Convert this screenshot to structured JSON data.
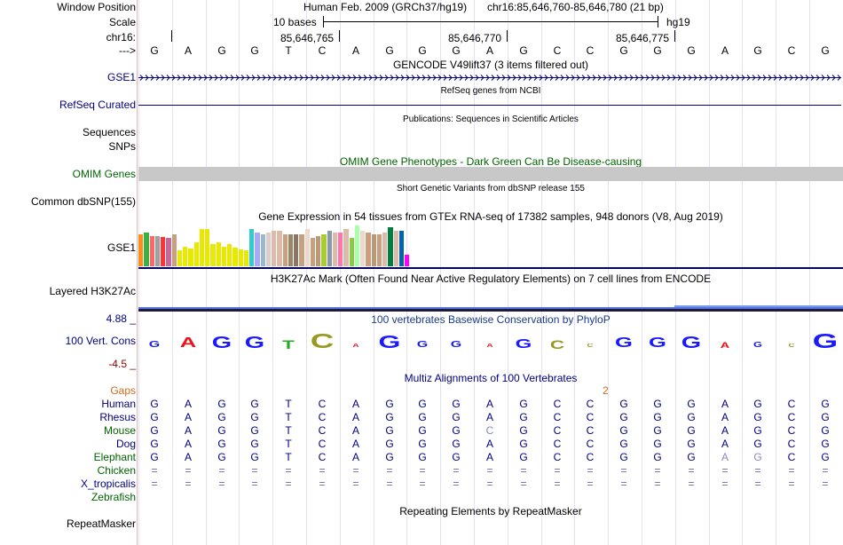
{
  "header": {
    "window_position_label": "Window Position",
    "scale_label": "Scale",
    "chrom_label": "chr16:",
    "arrow_label": "--->",
    "assembly": "Human Feb. 2009 (GRCh37/hg19)",
    "position": "chr16:85,646,760-85,646,780 (21 bp)",
    "scale_text": "10 bases",
    "scale_db": "hg19",
    "coord_ticks": [
      "85,646,765",
      "85,646,770",
      "85,646,775"
    ]
  },
  "sequence": [
    "G",
    "A",
    "G",
    "G",
    "T",
    "C",
    "A",
    "G",
    "G",
    "G",
    "A",
    "G",
    "C",
    "C",
    "G",
    "G",
    "G",
    "A",
    "G",
    "C",
    "G"
  ],
  "tracks": {
    "gencode": {
      "title": "GENCODE V49lift37 (3 items filtered out)",
      "label": "GSE1"
    },
    "refseq": {
      "title": "RefSeq genes from NCBI",
      "label": "RefSeq Curated"
    },
    "publications": {
      "title": "Publications: Sequences in Scientific Articles",
      "label1": "Sequences",
      "label2": "SNPs"
    },
    "omim": {
      "title": "OMIM Gene Phenotypes - Dark Green Can Be Disease-causing",
      "label": "OMIM Genes"
    },
    "dbsnp": {
      "title": "Short Genetic Variants from dbSNP release 155",
      "label": "Common dbSNP(155)"
    },
    "gtex": {
      "title": "Gene Expression in 54 tissues from GTEx RNA-seq of 17382 samples, 948 donors (V8, Aug 2019)",
      "label": "GSE1",
      "bars": [
        {
          "value": 0.86,
          "color": "#ff8c1a"
        },
        {
          "value": 0.9,
          "color": "#3cb043"
        },
        {
          "value": 0.82,
          "color": "#ff6666"
        },
        {
          "value": 0.8,
          "color": "#a0a0a0"
        },
        {
          "value": 0.78,
          "color": "#ff3333"
        },
        {
          "value": 0.75,
          "color": "#cc6699"
        },
        {
          "value": 0.85,
          "color": "#c8a080"
        },
        {
          "value": 0.42,
          "color": "#e8e800"
        },
        {
          "value": 0.52,
          "color": "#e8e800"
        },
        {
          "value": 0.48,
          "color": "#e8e800"
        },
        {
          "value": 0.65,
          "color": "#e8e800"
        },
        {
          "value": 1.0,
          "color": "#e8e800"
        },
        {
          "value": 1.0,
          "color": "#e8e800"
        },
        {
          "value": 0.6,
          "color": "#e8e800"
        },
        {
          "value": 0.65,
          "color": "#e8e800"
        },
        {
          "value": 0.52,
          "color": "#e8e800"
        },
        {
          "value": 0.6,
          "color": "#e8e800"
        },
        {
          "value": 0.5,
          "color": "#e8e800"
        },
        {
          "value": 0.45,
          "color": "#e8e800"
        },
        {
          "value": 0.42,
          "color": "#e8e800"
        },
        {
          "value": 1.0,
          "color": "#33cccc"
        },
        {
          "value": 0.9,
          "color": "#a8a8ff"
        },
        {
          "value": 0.85,
          "color": "#99b8cc"
        },
        {
          "value": 0.9,
          "color": "#ddcccc"
        },
        {
          "value": 0.95,
          "color": "#ddbbaa"
        },
        {
          "value": 0.95,
          "color": "#ddbbaa"
        },
        {
          "value": 0.85,
          "color": "#c8a080"
        },
        {
          "value": 0.85,
          "color": "#998866"
        },
        {
          "value": 0.85,
          "color": "#887766"
        },
        {
          "value": 0.85,
          "color": "#c8a080"
        },
        {
          "value": 1.0,
          "color": "#eed8cc"
        },
        {
          "value": 0.75,
          "color": "#c8a080"
        },
        {
          "value": 0.8,
          "color": "#bb9977"
        },
        {
          "value": 0.85,
          "color": "#aacc33"
        },
        {
          "value": 0.95,
          "color": "#8899aa"
        },
        {
          "value": 0.9,
          "color": "#ddbbaa"
        },
        {
          "value": 0.9,
          "color": "#ff77aa"
        },
        {
          "value": 1.0,
          "color": "#ddbbaa"
        },
        {
          "value": 0.75,
          "color": "#88cc44"
        },
        {
          "value": 1.1,
          "color": "#aaffaa"
        },
        {
          "value": 0.95,
          "color": "#eed8cc"
        },
        {
          "value": 0.9,
          "color": "#c8a080"
        },
        {
          "value": 0.85,
          "color": "#bb9977"
        },
        {
          "value": 0.85,
          "color": "#c8a080"
        },
        {
          "value": 0.9,
          "color": "#ddbbaa"
        },
        {
          "value": 1.05,
          "color": "#007f3f"
        },
        {
          "value": 0.95,
          "color": "#ddbbaa"
        },
        {
          "value": 0.95,
          "color": "#0066aa"
        },
        {
          "value": 0.3,
          "color": "#ff00ff"
        }
      ]
    },
    "h3k27ac": {
      "title": "H3K27Ac Mark (Often Found Near Active Regulatory Elements) on 7 cell lines from ENCODE",
      "label": "Layered H3K27Ac"
    },
    "conservation": {
      "title": "100 vertebrates Basewise Conservation by PhyloP",
      "label": "100 Vert. Cons",
      "max_label": "4.88 _",
      "min_label": "-4.5 _",
      "letters": [
        {
          "b": "G",
          "size": 0.55,
          "color": "#1a1aff"
        },
        {
          "b": "A",
          "size": 0.9,
          "color": "#e8141e"
        },
        {
          "b": "G",
          "size": 1.0,
          "color": "#1a1aff"
        },
        {
          "b": "G",
          "size": 1.0,
          "color": "#1a1aff"
        },
        {
          "b": "T",
          "size": 0.75,
          "color": "#22b022"
        },
        {
          "b": "C",
          "size": 1.25,
          "color": "#999922"
        },
        {
          "b": "A",
          "size": 0.35,
          "color": "#e8141e"
        },
        {
          "b": "G",
          "size": 1.1,
          "color": "#1a1aff"
        },
        {
          "b": "G",
          "size": 0.55,
          "color": "#1a1aff"
        },
        {
          "b": "G",
          "size": 0.55,
          "color": "#1a1aff"
        },
        {
          "b": "A",
          "size": 0.12,
          "color": "#e8141e"
        },
        {
          "b": "G",
          "size": 0.85,
          "color": "#1a1aff"
        },
        {
          "b": "C",
          "size": 0.75,
          "color": "#999922"
        },
        {
          "b": "C",
          "size": 0.25,
          "color": "#999922"
        },
        {
          "b": "G",
          "size": 0.9,
          "color": "#1a1aff"
        },
        {
          "b": "G",
          "size": 0.9,
          "color": "#1a1aff"
        },
        {
          "b": "G",
          "size": 1.0,
          "color": "#1a1aff"
        },
        {
          "b": "A",
          "size": 0.5,
          "color": "#e8141e"
        },
        {
          "b": "G",
          "size": 0.45,
          "color": "#1a1aff"
        },
        {
          "b": "C",
          "size": 0.25,
          "color": "#999922"
        },
        {
          "b": "G",
          "size": 1.25,
          "color": "#1a1aff"
        }
      ]
    },
    "multiz": {
      "title": "Multiz Alignments of 100 Vertebrates",
      "gaps_label": "Gaps",
      "gaps_marker": "2",
      "species": [
        {
          "name": "Human",
          "color": "#000080",
          "seq": [
            "G",
            "A",
            "G",
            "G",
            "T",
            "C",
            "A",
            "G",
            "G",
            "G",
            "A",
            "G",
            "C",
            "C",
            "G",
            "G",
            "G",
            "A",
            "G",
            "C",
            "G"
          ]
        },
        {
          "name": "Rhesus",
          "color": "#000080",
          "seq": [
            "G",
            "A",
            "G",
            "G",
            "T",
            "C",
            "A",
            "G",
            "G",
            "G",
            "A",
            "G",
            "C",
            "C",
            "G",
            "G",
            "G",
            "A",
            "G",
            "C",
            "G"
          ]
        },
        {
          "name": "Mouse",
          "color": "#006400",
          "seq": [
            "G",
            "A",
            "G",
            "G",
            "T",
            "C",
            "A",
            "G",
            "G",
            "G",
            "C",
            "G",
            "C",
            "C",
            "G",
            "G",
            "G",
            "A",
            "G",
            "C",
            "G"
          ]
        },
        {
          "name": "Dog",
          "color": "#000080",
          "seq": [
            "G",
            "A",
            "G",
            "G",
            "T",
            "C",
            "A",
            "G",
            "G",
            "G",
            "A",
            "G",
            "C",
            "C",
            "G",
            "G",
            "G",
            "A",
            "G",
            "C",
            "G"
          ]
        },
        {
          "name": "Elephant",
          "color": "#006400",
          "seq": [
            "G",
            "A",
            "G",
            "G",
            "T",
            "C",
            "A",
            "G",
            "G",
            "G",
            "A",
            "G",
            "C",
            "C",
            "G",
            "G",
            "G",
            "A",
            "G",
            "C",
            "G"
          ]
        },
        {
          "name": "Chicken",
          "color": "#006400",
          "seq": [
            "=",
            "=",
            "=",
            "=",
            "=",
            "=",
            "=",
            "=",
            "=",
            "=",
            "=",
            "=",
            "=",
            "=",
            "=",
            "=",
            "=",
            "=",
            "=",
            "=",
            "="
          ]
        },
        {
          "name": "X_tropicalis",
          "color": "#000080",
          "seq": [
            "=",
            "=",
            "=",
            "=",
            "=",
            "=",
            "=",
            "=",
            "=",
            "=",
            "=",
            "=",
            "=",
            "=",
            "=",
            "=",
            "=",
            "=",
            "=",
            "=",
            "="
          ]
        },
        {
          "name": "Zebrafish",
          "color": "#006400",
          "seq": []
        }
      ]
    },
    "repeatmasker": {
      "title": "Repeating Elements by RepeatMasker",
      "label": "RepeatMasker"
    }
  }
}
